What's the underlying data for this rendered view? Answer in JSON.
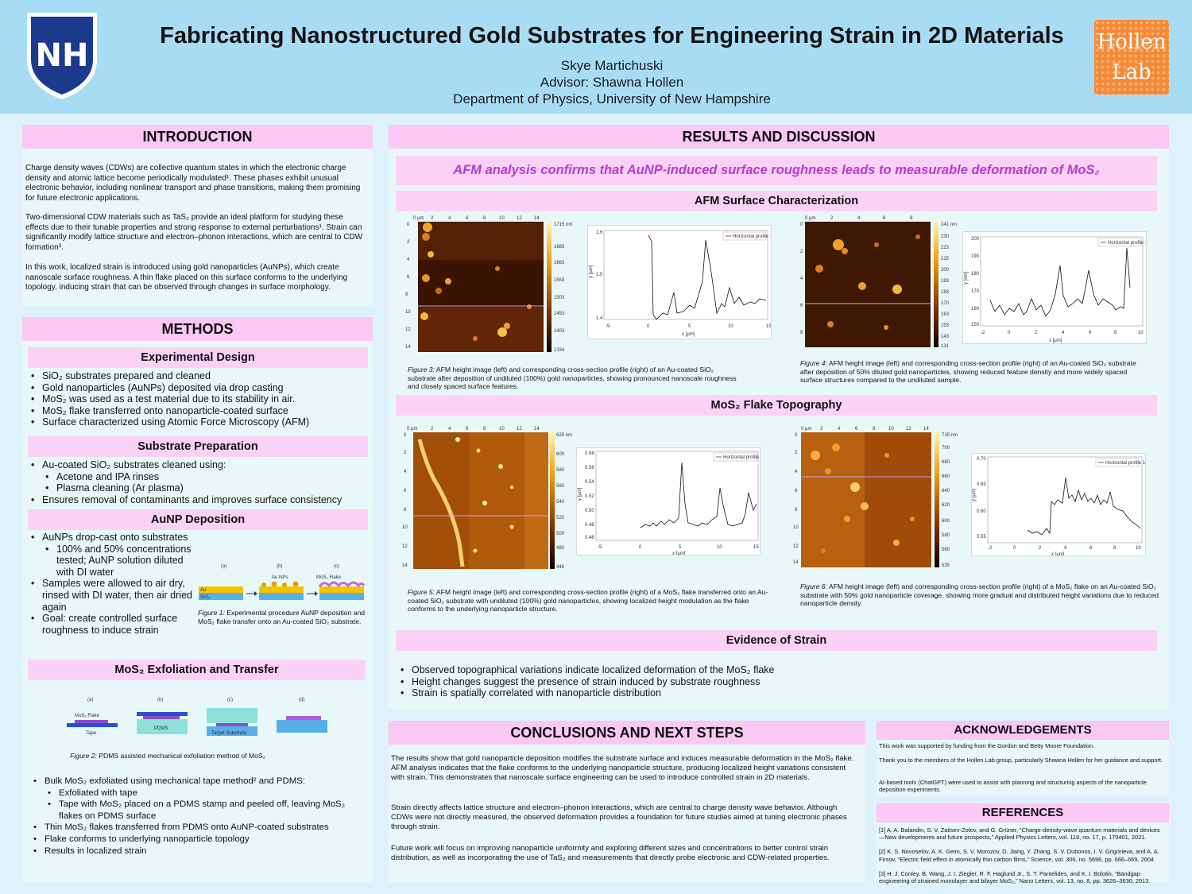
{
  "header": {
    "title": "Fabricating Nanostructured Gold Substrates for Engineering Strain in 2D Materials",
    "author": "Skye Martichuski",
    "advisor": "Advisor: Shawna Hollen",
    "department": "Department of Physics, University of New Hampshire",
    "left_logo": "NH",
    "right_logo_line1": "Hollen",
    "right_logo_line2": "Lab"
  },
  "introduction": {
    "title": "INTRODUCTION",
    "p1": "Charge density waves (CDWs) are collective quantum states in which the electronic charge density and atomic lattice become periodically modulated¹. These phases exhibit unusual electronic behavior, including nonlinear transport and phase transitions, making them promising for future electronic applications.",
    "p2": "Two-dimensional CDW materials such as TaS₂ provide an ideal platform for studying these effects due to their tunable properties and strong response to external perturbations¹. Strain can significantly modify lattice structure and electron–phonon interactions, which are central to CDW formation³.",
    "p3": "In this work, localized strain is introduced using gold nanoparticles (AuNPs), which create nanoscale surface roughness. A thin flake placed on this surface conforms to the underlying topology, inducing strain that can be observed through changes in surface morphology."
  },
  "methods": {
    "title": "METHODS",
    "design_title": "Experimental Design",
    "design_items": [
      "SiO₂ substrates prepared and cleaned",
      "Gold nanoparticles (AuNPs) deposited via drop casting",
      "MoS₂ was used as a test material due to its stability in air.",
      "MoS₂ flake transferred onto nanoparticle-coated surface",
      "Surface characterized using Atomic Force Microscopy (AFM)"
    ],
    "prep_title": "Substrate Preparation",
    "prep_items": [
      "Au-coated SiO₂ substrates cleaned using:",
      "Acetone and IPA rinses",
      "Plasma cleaning (Ar plasma)",
      "Ensures removal of contaminants and improves surface consistency"
    ],
    "aunp_title": "AuNP Deposition",
    "aunp_items": [
      "AuNPs drop-cast onto substrates",
      "100% and 50% concentrations tested; AuNP solution diluted with DI water",
      "Samples were allowed to air dry, rinsed with DI water, then air dried again",
      "Goal: create controlled surface roughness to induce strain"
    ],
    "fig1": {
      "labels": [
        "(a)",
        "(b)",
        "(c)"
      ],
      "au": "Au",
      "sio2": "SiO₂",
      "aunps": "Au NPs",
      "flake": "MoS₂ Flake",
      "caption_lead": "Figure 1:",
      "caption": " Experimental procedure AuNP deposition and MoS₂ flake transfer onto an Au-coated SiO₂ substrate."
    },
    "exfol_title": "MoS₂  Exfoliation and Transfer",
    "fig2": {
      "labels": [
        "(a)",
        "(b)",
        "(c)",
        "(d)"
      ],
      "flake": "MoS₂ Flake",
      "tape": "Tape",
      "pdms": "PDMS",
      "target": "Target Substrate",
      "caption_lead": "Figure 2:",
      "caption": " PDMS assisted mechanical exfoliation method of MoS₂"
    },
    "exfol_items": [
      "Bulk MoS₂  exfoliated using mechanical tape method² and PDMS:",
      "Exfoliated with tape",
      "Tape with MoS₂  placed on a PDMS stamp and peeled off, leaving MoS₂  flakes on PDMS surface",
      "Thin MoS₂ flakes transferred from PDMS onto AuNP-coated substrates",
      "Flake conforms to underlying nanoparticle topology",
      "Results in localized strain"
    ]
  },
  "results": {
    "title": "RESULTS AND DISCUSSION",
    "tagline": "AFM analysis confirms that AuNP-induced surface roughness leads to measurable deformation of MoS₂",
    "afm_title": "AFM Surface Characterization",
    "mos2_title": "MoS₂ Flake Topography",
    "strain_title": "Evidence of Strain",
    "profile_legend": "Horizontal profile 1",
    "um": "0 µm",
    "xunit": "x [µm]",
    "fig3": {
      "lead": "Figure 3:",
      "text": " AFM height image (left) and corresponding cross-section profile (right) of an Au-coated SiO₂ substrate after deposition of undiluted (100%) gold nanoparticles, showing pronounced nanoscale roughness and closely spaced surface features.",
      "ticks_top": [
        "2",
        "4",
        "6",
        "8",
        "10",
        "12",
        "14"
      ],
      "ticks_left": [
        "0",
        "2",
        "4",
        "6",
        "8",
        "10",
        "12",
        "14"
      ],
      "scale": [
        "1715 nm",
        "1683",
        "1663",
        "1553",
        "1503",
        "1453",
        "1403",
        "1334"
      ],
      "y_ticks": [
        "1.6",
        "1.5",
        "1.4"
      ],
      "x_ticks": [
        "-5",
        "0",
        "5",
        "10",
        "15"
      ],
      "ylabel": "y [µm]"
    },
    "fig4": {
      "lead": "Figure 4:",
      "text": " AFM height image (left) and corresponding cross-section profile (right) of an Au-coated SiO₂ substrate after deposition of 50% diluted gold nanoparticles, showing reduced feature density and more widely spaced surface structures compared to the undiluted sample.",
      "ticks_top": [
        "2",
        "4",
        "6",
        "8"
      ],
      "ticks_left": [
        "0",
        "2",
        "4",
        "6",
        "8"
      ],
      "scale": [
        "241 nm",
        "230",
        "223",
        "215",
        "200",
        "193",
        "183",
        "170",
        "163",
        "153",
        "143",
        "131"
      ],
      "y_ticks": [
        "200",
        "190",
        "180",
        "170",
        "160",
        "150"
      ],
      "x_ticks": [
        "-2",
        "0",
        "2",
        "4",
        "6",
        "8",
        "10"
      ],
      "ylabel": "y [nm]"
    },
    "fig5": {
      "lead": "Figure 5:",
      "text": " AFM height image (left) and corresponding cross-section profile (right) of a MoS₂ flake transferred onto an Au-coated SiO₂ substrate with undiluted (100%) gold nanoparticles, showing localized height modulation as the flake conforms to the underlying nanoparticle structure.",
      "ticks_top": [
        "2",
        "4",
        "6",
        "8",
        "10",
        "12",
        "14"
      ],
      "ticks_left": [
        "0",
        "2",
        "4",
        "6",
        "8",
        "10",
        "12",
        "14"
      ],
      "scale": [
        "625 nm",
        "600",
        "580",
        "560",
        "540",
        "520",
        "500",
        "480",
        "446"
      ],
      "y_ticks": [
        "0.58",
        "0.56",
        "0.54",
        "0.52",
        "0.50",
        "0.48",
        "0.46"
      ],
      "x_ticks": [
        "-5",
        "0",
        "5",
        "10",
        "15"
      ],
      "ylabel": "y [µm]"
    },
    "fig6": {
      "lead": "Figure 6:",
      "text": " AFM height image (left) and corresponding cross-section profile (right) of a MoS₂ flake on an Au-coated SiO₂ substrate with 50% gold nanoparticle coverage, showing more gradual and distributed height variations due to reduced nanoparticle density.",
      "ticks_top": [
        "2",
        "4",
        "6",
        "8",
        "10",
        "12",
        "14"
      ],
      "ticks_left": [
        "0",
        "2",
        "4",
        "6",
        "8",
        "10",
        "12",
        "14"
      ],
      "scale": [
        "715 nm",
        "700",
        "680",
        "660",
        "640",
        "620",
        "600",
        "580",
        "560",
        "535"
      ],
      "y_ticks": [
        "0.70",
        "0.65",
        "0.60",
        "0.55"
      ],
      "x_ticks": [
        "-2",
        "0",
        "2",
        "4",
        "6",
        "8",
        "10"
      ],
      "ylabel": "y [µm]"
    },
    "strain_items": [
      "Observed topographical variations indicate localized deformation of the MoS₂ flake",
      "Height changes suggest the presence of strain induced by substrate roughness",
      "Strain is spatially correlated with nanoparticle distribution"
    ]
  },
  "conclusions": {
    "title": "CONCLUSIONS AND NEXT STEPS",
    "p1": "The results show that gold nanoparticle deposition modifies the substrate surface and induces measurable deformation in the MoS₂ flake. AFM analysis indicates that the flake conforms to the underlying nanoparticle structure, producing localized height variations consistent with strain. This demonstrates that nanoscale surface engineering can be used to introduce controlled strain in 2D materials.",
    "p2": "Strain directly affects lattice structure and electron–phonon interactions, which are central to charge density wave behavior. Although CDWs were not directly measured, the observed deformation provides a foundation for future studies aimed at tuning electronic phases through strain.",
    "p3": "Future work will focus on improving nanoparticle uniformity and exploring different sizes and concentrations to better control strain distribution, as well as incorporating the use of TaS₂ and measurements that directly probe electronic and CDW-related properties."
  },
  "acknowledgements": {
    "title": "ACKNOWLEDGEMENTS",
    "p1": "This work was supported by funding from the Gordon and Betty Moore Foundation.",
    "p2": "Thank you to the members of the Hollen Lab group, particularly Shawna Hollen for her guidance and support.",
    "p3": "AI-based tools (ChatGPT) were used to assist with planning and structuring aspects of the nanoparticle deposition experiments."
  },
  "references": {
    "title": "REFERENCES",
    "r1": "[1] A. A. Balandin, S. V. Zaitsev-Zotov, and G. Grüner, “Charge-density-wave quantum materials and devices—New developments and future prospects,” Applied Physics Letters, vol. 119, no. 17, p. 170401, 2021.",
    "r2": "[2] K. S. Novoselov, A. K. Geim, S. V. Morozov, D. Jiang, Y. Zhang, S. V. Dubonos, I. V. Grigorieva, and A. A. Firsov, “Electric field effect in atomically thin carbon films,” Science, vol. 306, no. 5696, pp. 666–669, 2004.",
    "r3": "[3] H. J. Conley, B. Wang, J. I. Ziegler, R. F. Haglund Jr., S. T. Pantelides, and K. I. Bolotin, “Bandgap engineering of strained monolayer and bilayer MoS₂,” Nano Letters, vol. 13, no. 8, pp. 3626–3630, 2013."
  },
  "colors": {
    "header_bg": "#a8dcf4",
    "section_head": "#fbc7f3",
    "panel_bg": "#e8f8f8",
    "tagline_text": "#b53ad8",
    "unh_navy": "#1b3a8c",
    "hollen_orange": "#f4893a"
  }
}
